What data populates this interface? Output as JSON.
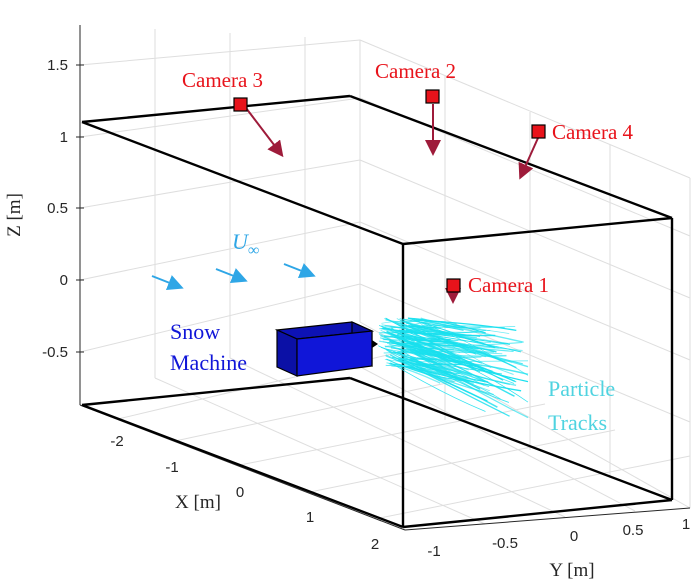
{
  "axes": {
    "x_label": "X [m]",
    "y_label": "Y [m]",
    "z_label": "Z [m]",
    "x_ticks": [
      "-2",
      "-1",
      "0",
      "1",
      "2"
    ],
    "y_ticks": [
      "-1",
      "-0.5",
      "0",
      "0.5",
      "1"
    ],
    "z_ticks": [
      "1.5",
      "1",
      "0.5",
      "0",
      "-0.5"
    ]
  },
  "cameras": [
    {
      "label": "Camera 1"
    },
    {
      "label": "Camera 2"
    },
    {
      "label": "Camera 3"
    },
    {
      "label": "Camera 4"
    }
  ],
  "labels": {
    "snow_machine_line1": "Snow",
    "snow_machine_line2": "Machine",
    "particle_tracks_line1": "Particle",
    "particle_tracks_line2": "Tracks",
    "flow_symbol": "U",
    "flow_subscript": "∞"
  },
  "colors": {
    "camera": "#e8131b",
    "camera_arrow": "#9e1b3a",
    "snow_machine": "#1016d8",
    "particle_tracks": "#19e0ee",
    "flow_arrows": "#2ea6e6",
    "box_edges": "#000000"
  }
}
